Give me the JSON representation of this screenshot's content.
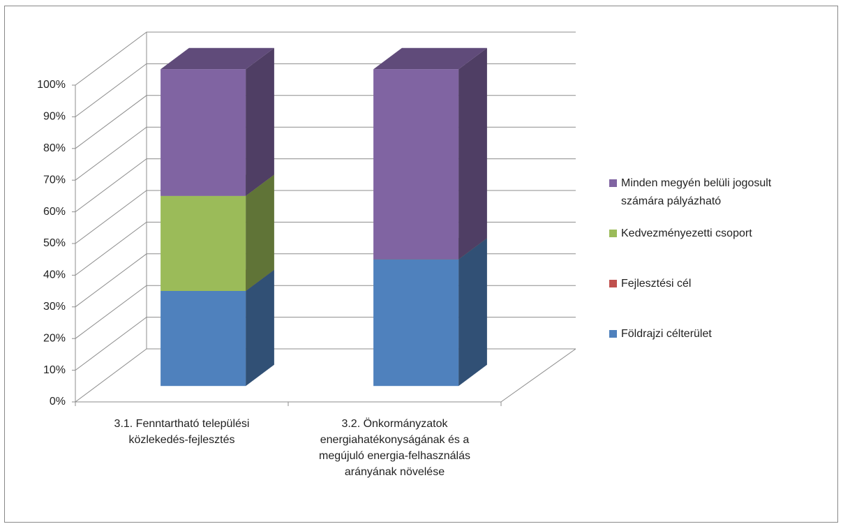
{
  "chart_data": {
    "type": "bar3d_stacked",
    "categories": [
      "3.1. Fenntartható települési közlekedés-fejlesztés",
      "3.2. Önkormányzatok energiahatékonyságának és a megújuló energia-felhasználás arányának növelése"
    ],
    "series": [
      {
        "name": "Földrajzi célterület",
        "color": "#4f81bd",
        "values": [
          30,
          40
        ]
      },
      {
        "name": "Fejlesztési cél",
        "color": "#c0504d",
        "values": [
          0,
          0
        ]
      },
      {
        "name": "Kedvezményezetti csoport",
        "color": "#9bbb59",
        "values": [
          30,
          0
        ]
      },
      {
        "name": "Minden megyén belüli jogosult számára pályázható",
        "color": "#8064a2",
        "values": [
          40,
          60
        ]
      }
    ],
    "ylim": [
      0,
      100
    ],
    "yticks": [
      {
        "value": 0,
        "label": "0%"
      },
      {
        "value": 10,
        "label": "10%"
      },
      {
        "value": 20,
        "label": "20%"
      },
      {
        "value": 30,
        "label": "30%"
      },
      {
        "value": 40,
        "label": "40%"
      },
      {
        "value": 50,
        "label": "50%"
      },
      {
        "value": 60,
        "label": "60%"
      },
      {
        "value": 70,
        "label": "70%"
      },
      {
        "value": 80,
        "label": "80%"
      },
      {
        "value": 90,
        "label": "90%"
      },
      {
        "value": 100,
        "label": "100%"
      }
    ],
    "grid": true,
    "legend": "right"
  }
}
